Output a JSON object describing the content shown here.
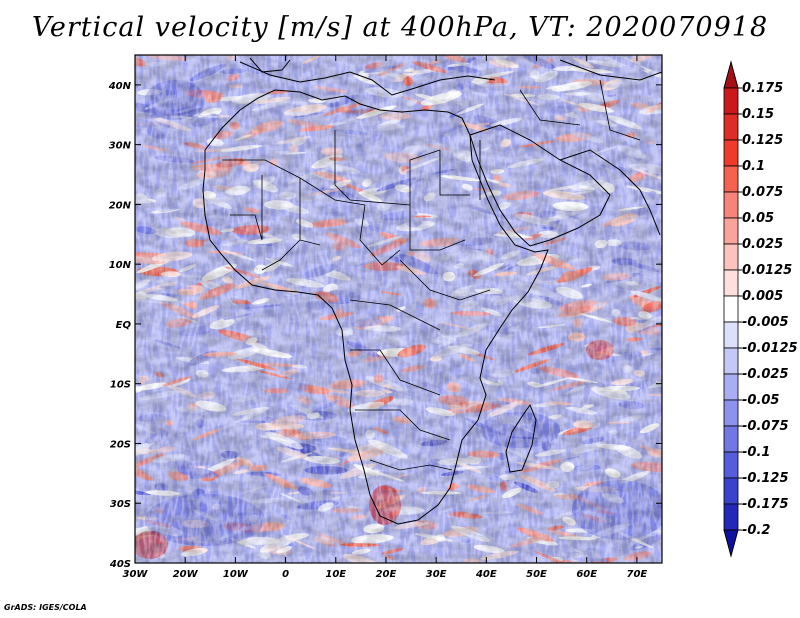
{
  "title": "Vertical velocity [m/s] at 400hPa, VT: 2020070918",
  "credit": "GrADS: IGES/COLA",
  "map": {
    "lon_range": [
      -30,
      75
    ],
    "lat_range": [
      -40,
      45
    ],
    "lon_ticks": [
      "30W",
      "20W",
      "10W",
      "0",
      "10E",
      "20E",
      "30E",
      "40E",
      "50E",
      "60E",
      "70E"
    ],
    "lat_ticks": [
      "40N",
      "30N",
      "20N",
      "10N",
      "EQ",
      "10S",
      "20S",
      "30S",
      "40S"
    ]
  },
  "colorbar": {
    "labels": [
      "0.175",
      "0.15",
      "0.125",
      "0.1",
      "0.075",
      "0.05",
      "0.025",
      "0.0125",
      "0.005",
      "-0.005",
      "-0.0125",
      "-0.025",
      "-0.05",
      "-0.075",
      "-0.1",
      "-0.125",
      "-0.175",
      "-0.2"
    ],
    "colors": [
      "#a50f15",
      "#cb181d",
      "#de2d26",
      "#ef3b2c",
      "#f46352",
      "#f7837a",
      "#f9a39b",
      "#fbc3bd",
      "#fde0dd",
      "#ffffff",
      "#dde0fb",
      "#c4c8f7",
      "#a9aef2",
      "#8d93ec",
      "#7178e4",
      "#555ddb",
      "#3b42cc",
      "#2328b8",
      "#0e10a0"
    ]
  },
  "colors": {
    "up": "#d9545a",
    "down": "#6a6ee6",
    "neutral": "#ffffff"
  }
}
